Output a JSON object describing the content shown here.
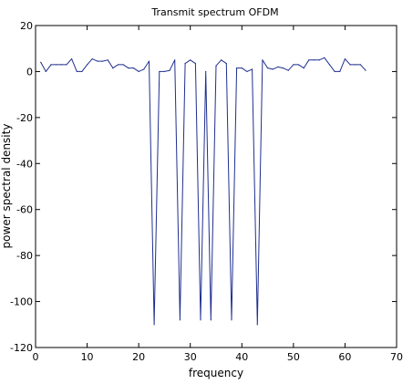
{
  "chart_data": {
    "type": "line",
    "title": "Transmit spectrum OFDM",
    "xlabel": "frequency",
    "ylabel": "power spectral density",
    "xlim": [
      0,
      70
    ],
    "ylim": [
      -120,
      20
    ],
    "xticks": [
      0,
      10,
      20,
      30,
      40,
      50,
      60,
      70
    ],
    "yticks": [
      20,
      0,
      -20,
      -40,
      -60,
      -80,
      -100,
      -120
    ],
    "grid": false,
    "legend": "none",
    "series": [
      {
        "color": "#1f2f8f",
        "x": [
          1,
          2,
          3,
          4,
          5,
          6,
          7,
          8,
          9,
          10,
          11,
          12,
          13,
          14,
          15,
          16,
          17,
          18,
          19,
          20,
          21,
          22,
          23,
          24,
          25,
          26,
          27,
          28,
          29,
          30,
          31,
          32,
          33,
          34,
          35,
          36,
          37,
          38,
          39,
          40,
          41,
          42,
          43,
          44,
          45,
          46,
          47,
          48,
          49,
          50,
          51,
          52,
          53,
          54,
          55,
          56,
          57,
          58,
          59,
          60,
          61,
          62,
          63,
          64
        ],
        "values": [
          4,
          0,
          3,
          3,
          3,
          3,
          5.5,
          0,
          0,
          3,
          5.5,
          4.5,
          4.5,
          5,
          1.5,
          3,
          3,
          1.5,
          1.5,
          0,
          1,
          4.5,
          -110,
          0,
          0,
          0.5,
          5,
          -108,
          3.5,
          5,
          3.5,
          -108,
          0,
          -108,
          2.5,
          5,
          3.5,
          -108,
          1.5,
          1.5,
          0,
          1,
          -110,
          5,
          1.5,
          1,
          2,
          1.5,
          0.5,
          3,
          3,
          1.5,
          5,
          5,
          5,
          6,
          3,
          0,
          0,
          5.5,
          3,
          3,
          3,
          0.5
        ]
      }
    ]
  }
}
